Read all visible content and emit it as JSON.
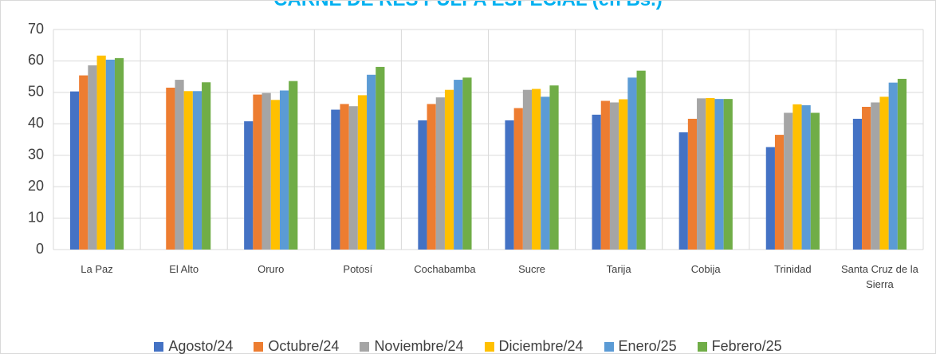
{
  "chart_data": {
    "type": "bar",
    "title": "CARNE DE RES PULPA ESPECIAL (en Bs.)",
    "categories": [
      "La Paz",
      "El Alto",
      "Oruro",
      "Potosí",
      "Cochabamba",
      "Sucre",
      "Tarija",
      "Cobija",
      "Trinidad",
      "Santa Cruz de la Sierra"
    ],
    "series": [
      {
        "name": "Agosto/24",
        "color": "#4472c4",
        "values": [
          50.3,
          null,
          40.8,
          44.5,
          41.1,
          41.1,
          42.9,
          37.3,
          32.6,
          41.6
        ]
      },
      {
        "name": "Octubre/24",
        "color": "#ed7d31",
        "values": [
          55.4,
          51.5,
          49.3,
          46.3,
          46.3,
          45.0,
          47.3,
          41.6,
          36.5,
          45.4
        ]
      },
      {
        "name": "Noviembre/24",
        "color": "#a5a5a5",
        "values": [
          58.6,
          54.0,
          49.8,
          45.6,
          48.4,
          50.8,
          46.8,
          48.1,
          43.5,
          46.8
        ]
      },
      {
        "name": "Diciembre/24",
        "color": "#ffc000",
        "values": [
          61.7,
          50.4,
          47.6,
          49.1,
          50.8,
          51.1,
          47.8,
          48.2,
          46.2,
          48.6
        ]
      },
      {
        "name": "Enero/25",
        "color": "#5b9bd5",
        "values": [
          60.4,
          50.4,
          50.6,
          55.6,
          54.0,
          48.6,
          54.7,
          47.9,
          45.9,
          53.1
        ]
      },
      {
        "name": "Febrero/25",
        "color": "#70ad47",
        "values": [
          60.9,
          53.2,
          53.6,
          58.1,
          54.7,
          52.2,
          56.9,
          47.9,
          43.5,
          54.3
        ]
      }
    ],
    "ylim": [
      0,
      70
    ],
    "yticks": [
      0,
      10,
      20,
      30,
      40,
      50,
      60,
      70
    ],
    "grid": true,
    "legend": "bottom"
  }
}
